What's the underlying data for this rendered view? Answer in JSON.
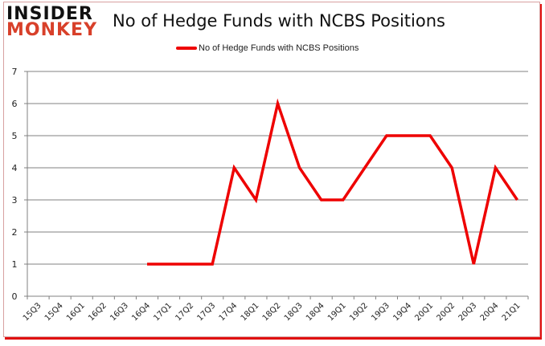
{
  "brand": {
    "line1": "INSIDER",
    "line2": "MONKEY"
  },
  "colors": {
    "series": "#ee0000",
    "grid": "#808080",
    "brand_red": "#d8402a"
  },
  "chart_data": {
    "type": "line",
    "title": "No of Hedge Funds with NCBS Positions",
    "xlabel": "",
    "ylabel": "",
    "ylim": [
      0,
      7
    ],
    "yticks": [
      0,
      1,
      2,
      3,
      4,
      5,
      6,
      7
    ],
    "grid": true,
    "legend_position": "top",
    "categories": [
      "15Q3",
      "15Q4",
      "16Q1",
      "16Q2",
      "16Q3",
      "16Q4",
      "17Q1",
      "17Q2",
      "17Q3",
      "17Q4",
      "18Q1",
      "18Q2",
      "18Q3",
      "18Q4",
      "19Q1",
      "19Q2",
      "19Q3",
      "19Q4",
      "20Q1",
      "20Q2",
      "20Q3",
      "20Q4",
      "21Q1"
    ],
    "series": [
      {
        "name": "No of Hedge Funds with NCBS Positions",
        "values": [
          null,
          null,
          null,
          null,
          null,
          1,
          1,
          1,
          1,
          4,
          3,
          6,
          4,
          3,
          3,
          4,
          5,
          5,
          5,
          4,
          1,
          4,
          3
        ]
      }
    ]
  }
}
